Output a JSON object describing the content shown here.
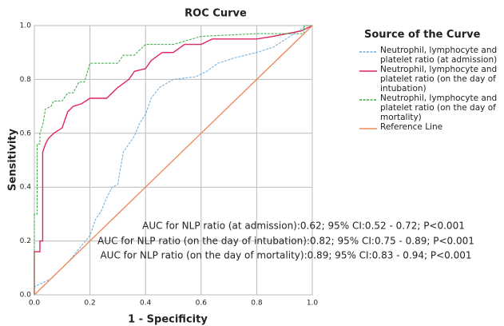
{
  "chart_data": {
    "type": "line",
    "title": "ROC Curve",
    "x_label": "1 - Specificity",
    "y_label": "Sensitivity",
    "xlim": [
      0,
      1
    ],
    "ylim": [
      0,
      1
    ],
    "xticks": [
      {
        "value": 0,
        "label": "0.0"
      },
      0.2,
      0.4,
      0.6,
      0.8,
      {
        "value": 1,
        "label": "1.0"
      }
    ],
    "yticks": [
      {
        "value": 0,
        "label": "0.0"
      },
      0.2,
      0.4,
      0.6,
      0.8,
      {
        "value": 1,
        "label": "1.0"
      }
    ],
    "grid": true,
    "legend_title": "Source of the Curve",
    "legend": "right",
    "series": [
      {
        "name": "Neutrophil, lymphocyte and platelet ratio (at admission)",
        "color": "#6aaad8",
        "dashed": true,
        "x": [
          0,
          0,
          0.06,
          0.12,
          0.16,
          0.2,
          0.22,
          0.24,
          0.26,
          0.28,
          0.3,
          0.32,
          0.34,
          0.36,
          0.38,
          0.4,
          0.42,
          0.45,
          0.5,
          0.58,
          0.62,
          0.66,
          0.72,
          0.8,
          0.86,
          0.92,
          0.98,
          1
        ],
        "values": [
          0,
          0.03,
          0.06,
          0.12,
          0.17,
          0.22,
          0.28,
          0.31,
          0.36,
          0.4,
          0.41,
          0.53,
          0.56,
          0.59,
          0.64,
          0.67,
          0.73,
          0.77,
          0.8,
          0.81,
          0.83,
          0.86,
          0.88,
          0.9,
          0.92,
          0.96,
          1,
          1
        ]
      },
      {
        "name": "Neutrophil, lymphocyte and platelet ratio (on the day of intubation)",
        "color": "#e0245e",
        "dashed": false,
        "x": [
          0,
          0,
          0.02,
          0.02,
          0.03,
          0.03,
          0.04,
          0.05,
          0.07,
          0.1,
          0.12,
          0.14,
          0.17,
          0.2,
          0.26,
          0.28,
          0.3,
          0.34,
          0.36,
          0.4,
          0.42,
          0.46,
          0.5,
          0.54,
          0.6,
          0.64,
          0.8,
          0.86,
          0.96,
          1
        ],
        "values": [
          0,
          0.16,
          0.16,
          0.2,
          0.2,
          0.53,
          0.56,
          0.58,
          0.6,
          0.62,
          0.68,
          0.7,
          0.71,
          0.73,
          0.73,
          0.75,
          0.77,
          0.8,
          0.83,
          0.84,
          0.87,
          0.9,
          0.9,
          0.93,
          0.93,
          0.95,
          0.95,
          0.96,
          0.98,
          1
        ]
      },
      {
        "name": "Neutrophil, lymphocyte and platelet ratio (on the day of mortality)",
        "color": "#3aa843",
        "dashed": true,
        "x": [
          0,
          0,
          0.01,
          0.01,
          0.02,
          0.02,
          0.03,
          0.04,
          0.06,
          0.07,
          0.1,
          0.12,
          0.14,
          0.16,
          0.18,
          0.2,
          0.3,
          0.32,
          0.36,
          0.4,
          0.5,
          0.6,
          0.8,
          0.97,
          0.97,
          1
        ],
        "values": [
          0,
          0.3,
          0.3,
          0.56,
          0.56,
          0.6,
          0.63,
          0.69,
          0.7,
          0.72,
          0.72,
          0.75,
          0.75,
          0.79,
          0.79,
          0.86,
          0.86,
          0.89,
          0.89,
          0.93,
          0.93,
          0.96,
          0.97,
          0.97,
          1,
          1
        ]
      },
      {
        "name": "Reference Line",
        "color": "#f08a5d",
        "dashed": false,
        "x": [
          0,
          1
        ],
        "values": [
          0,
          1
        ]
      }
    ],
    "annotations": [
      "AUC for NLP ratio (at admission):0.62; 95% CI:0.52 - 0.72; P<0.001",
      "AUC for NLP ratio (on the day of intubation):0.82; 95% CI:0.75 - 0.89; P<0.001",
      "AUC for NLP ratio (on the day of mortality):0.89; 95% CI:0.83 - 0.94; P<0.001"
    ]
  }
}
